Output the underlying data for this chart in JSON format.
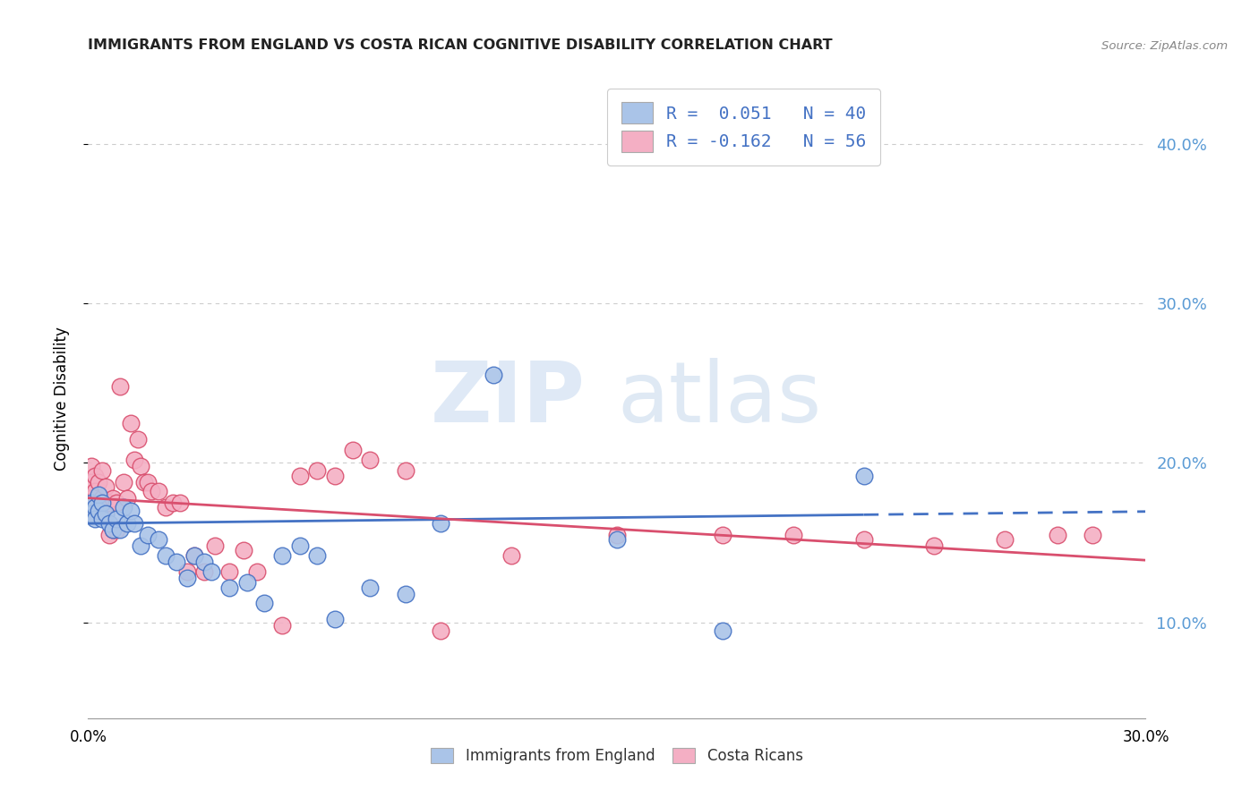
{
  "title": "IMMIGRANTS FROM ENGLAND VS COSTA RICAN COGNITIVE DISABILITY CORRELATION CHART",
  "source": "Source: ZipAtlas.com",
  "ylabel": "Cognitive Disability",
  "xlim": [
    0.0,
    0.3
  ],
  "ylim": [
    0.04,
    0.44
  ],
  "yticks": [
    0.1,
    0.2,
    0.3,
    0.4
  ],
  "ytick_labels": [
    "10.0%",
    "20.0%",
    "30.0%",
    "40.0%"
  ],
  "xticks": [
    0.0,
    0.05,
    0.1,
    0.15,
    0.2,
    0.25,
    0.3
  ],
  "xtick_labels": [
    "0.0%",
    "",
    "",
    "",
    "",
    "",
    "30.0%"
  ],
  "color_blue": "#aac4e8",
  "color_pink": "#f4afc4",
  "line_blue": "#4472c4",
  "line_pink": "#d94f6e",
  "watermark_zip": "ZIP",
  "watermark_atlas": "atlas",
  "blue_x": [
    0.001,
    0.001,
    0.002,
    0.002,
    0.003,
    0.003,
    0.004,
    0.004,
    0.005,
    0.006,
    0.007,
    0.008,
    0.009,
    0.01,
    0.011,
    0.012,
    0.013,
    0.015,
    0.017,
    0.02,
    0.022,
    0.025,
    0.028,
    0.03,
    0.033,
    0.035,
    0.04,
    0.045,
    0.05,
    0.055,
    0.06,
    0.065,
    0.07,
    0.08,
    0.09,
    0.1,
    0.115,
    0.15,
    0.18,
    0.22
  ],
  "blue_y": [
    0.175,
    0.168,
    0.172,
    0.165,
    0.18,
    0.17,
    0.175,
    0.165,
    0.168,
    0.162,
    0.158,
    0.165,
    0.158,
    0.172,
    0.162,
    0.17,
    0.162,
    0.148,
    0.155,
    0.152,
    0.142,
    0.138,
    0.128,
    0.142,
    0.138,
    0.132,
    0.122,
    0.125,
    0.112,
    0.142,
    0.148,
    0.142,
    0.102,
    0.122,
    0.118,
    0.162,
    0.255,
    0.152,
    0.095,
    0.192
  ],
  "pink_x": [
    0.001,
    0.001,
    0.001,
    0.002,
    0.002,
    0.002,
    0.003,
    0.003,
    0.004,
    0.004,
    0.005,
    0.005,
    0.006,
    0.006,
    0.007,
    0.007,
    0.008,
    0.008,
    0.009,
    0.01,
    0.011,
    0.012,
    0.013,
    0.014,
    0.015,
    0.016,
    0.017,
    0.018,
    0.02,
    0.022,
    0.024,
    0.026,
    0.028,
    0.03,
    0.033,
    0.036,
    0.04,
    0.044,
    0.048,
    0.055,
    0.06,
    0.065,
    0.07,
    0.075,
    0.08,
    0.09,
    0.1,
    0.12,
    0.15,
    0.18,
    0.2,
    0.22,
    0.24,
    0.26,
    0.275,
    0.285
  ],
  "pink_y": [
    0.198,
    0.188,
    0.178,
    0.192,
    0.182,
    0.168,
    0.188,
    0.172,
    0.195,
    0.178,
    0.185,
    0.168,
    0.175,
    0.155,
    0.178,
    0.158,
    0.175,
    0.158,
    0.248,
    0.188,
    0.178,
    0.225,
    0.202,
    0.215,
    0.198,
    0.188,
    0.188,
    0.182,
    0.182,
    0.172,
    0.175,
    0.175,
    0.132,
    0.142,
    0.132,
    0.148,
    0.132,
    0.145,
    0.132,
    0.098,
    0.192,
    0.195,
    0.192,
    0.208,
    0.202,
    0.195,
    0.095,
    0.142,
    0.155,
    0.155,
    0.155,
    0.152,
    0.148,
    0.152,
    0.155,
    0.155
  ]
}
